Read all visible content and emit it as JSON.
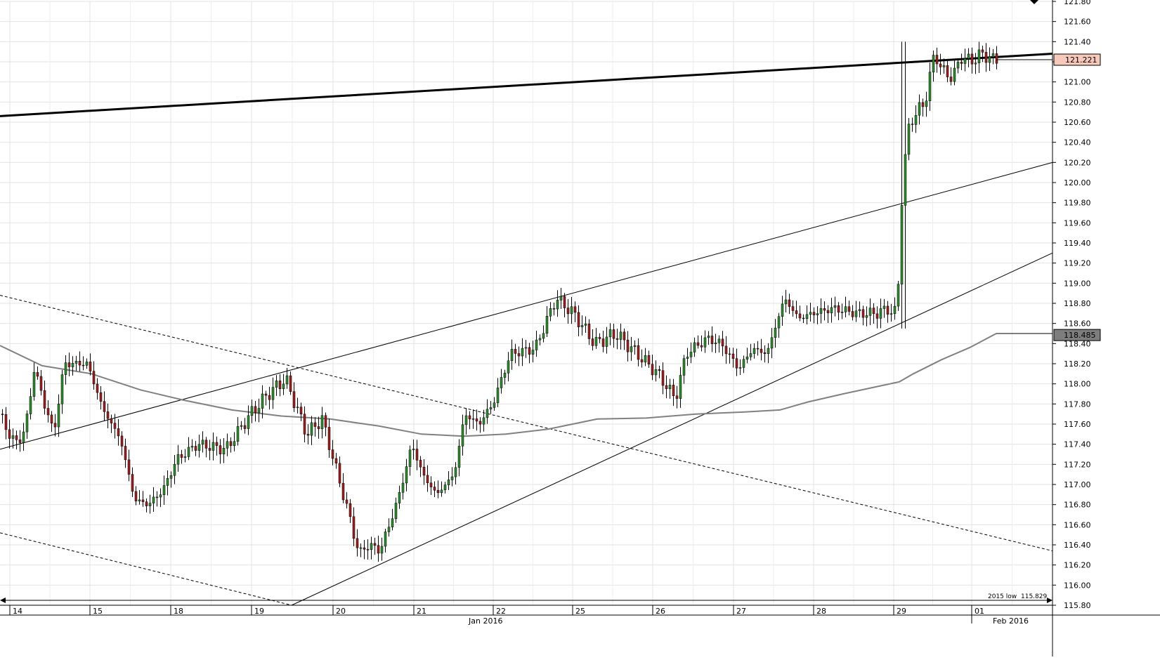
{
  "chart_data": {
    "type": "candlestick",
    "title": "",
    "xlabel": "",
    "ylabel": "",
    "ylim": [
      115.8,
      121.8
    ],
    "grid": true,
    "y_ticks": [
      "115.80",
      "116.00",
      "116.20",
      "116.40",
      "116.60",
      "116.80",
      "117.00",
      "117.20",
      "117.40",
      "117.60",
      "117.80",
      "118.00",
      "118.20",
      "118.40",
      "118.60",
      "118.80",
      "119.00",
      "119.20",
      "119.40",
      "119.60",
      "119.80",
      "120.00",
      "120.20",
      "120.40",
      "120.60",
      "120.80",
      "121.00",
      "121.20",
      "121.40",
      "121.60",
      "121.80"
    ],
    "x_ticks": [
      "14",
      "15",
      "18",
      "19",
      "20",
      "21",
      "22",
      "25",
      "26",
      "27",
      "28",
      "29",
      "01"
    ],
    "x_month_labels": [
      "Jan 2016",
      "Feb 2016"
    ],
    "current_price": "121.221",
    "moving_average_value": "118.485",
    "annotation_2015_low": {
      "label": "2015 low",
      "value": "115.829"
    },
    "candles_sample": [
      {
        "day": "14",
        "open": 117.65,
        "high": 117.7,
        "low": 117.3,
        "close": 117.4
      },
      {
        "day": "15",
        "open": 118.2,
        "high": 118.28,
        "low": 117.6,
        "close": 117.7
      },
      {
        "day": "18",
        "open": 117.0,
        "high": 117.45,
        "low": 116.55,
        "close": 117.3
      },
      {
        "day": "19",
        "open": 117.6,
        "high": 118.1,
        "low": 117.3,
        "close": 117.9
      },
      {
        "day": "20",
        "open": 117.4,
        "high": 117.6,
        "low": 116.0,
        "close": 116.3
      },
      {
        "day": "21",
        "open": 116.5,
        "high": 117.5,
        "low": 116.5,
        "close": 117.4
      },
      {
        "day": "22",
        "open": 117.6,
        "high": 118.5,
        "low": 117.5,
        "close": 118.4
      },
      {
        "day": "25",
        "open": 118.8,
        "high": 118.9,
        "low": 118.2,
        "close": 118.4
      },
      {
        "day": "26",
        "open": 118.3,
        "high": 118.4,
        "low": 117.65,
        "close": 118.3
      },
      {
        "day": "27",
        "open": 118.4,
        "high": 118.6,
        "low": 118.05,
        "close": 118.3
      },
      {
        "day": "28",
        "open": 118.8,
        "high": 119.05,
        "low": 118.45,
        "close": 118.7
      },
      {
        "day": "29",
        "open": 118.7,
        "high": 121.4,
        "low": 118.5,
        "close": 120.9
      },
      {
        "day": "01",
        "open": 121.3,
        "high": 121.5,
        "low": 121.1,
        "close": 121.22
      }
    ]
  }
}
